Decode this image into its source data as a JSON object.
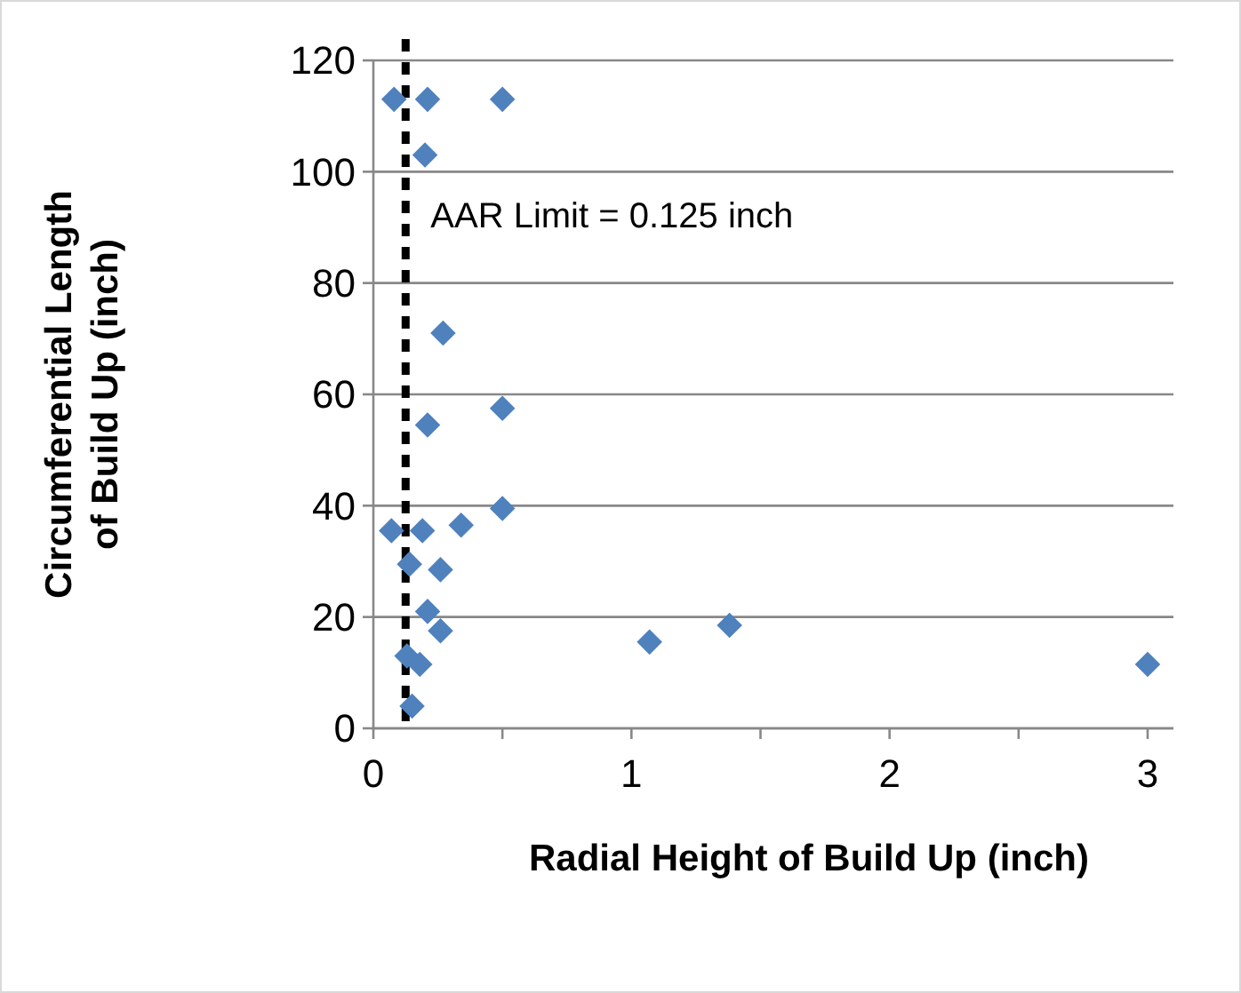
{
  "chart_data": {
    "type": "scatter",
    "xlabel": "Radial Height of Build Up (inch)",
    "ylabel": "Circumferential Length of Build Up (inch)",
    "xlim": [
      0,
      3.1
    ],
    "xticks": [
      0,
      {
        "value": 0.5,
        "label": null
      },
      1,
      {
        "value": 1.5,
        "label": null
      },
      2,
      {
        "value": 2.5,
        "label": null
      },
      3
    ],
    "ylim": [
      0,
      120
    ],
    "yticks": [
      0,
      20,
      40,
      60,
      80,
      100,
      120
    ],
    "grid": "y",
    "marker": "diamond",
    "series": [
      {
        "color": "#4f81bd",
        "x": [
          0.08,
          0.21,
          0.5,
          0.2,
          0.27,
          0.21,
          0.5,
          0.5,
          0.07,
          0.19,
          0.34,
          0.14,
          0.26,
          0.21,
          0.26,
          0.13,
          0.18,
          0.15,
          1.07,
          1.38,
          3.0
        ],
        "values": [
          113,
          113,
          113,
          103,
          71,
          54.5,
          57.5,
          39.5,
          35.5,
          35.5,
          36.5,
          29.5,
          28.5,
          21,
          17.5,
          13,
          11.5,
          4,
          15.5,
          18.5,
          11.5
        ]
      }
    ],
    "ref_lines": [
      {
        "axis": "x",
        "value": 0.125,
        "label": "AAR Limit = 0.125 inch",
        "color": "#000000",
        "line_style": "dashed"
      }
    ]
  }
}
